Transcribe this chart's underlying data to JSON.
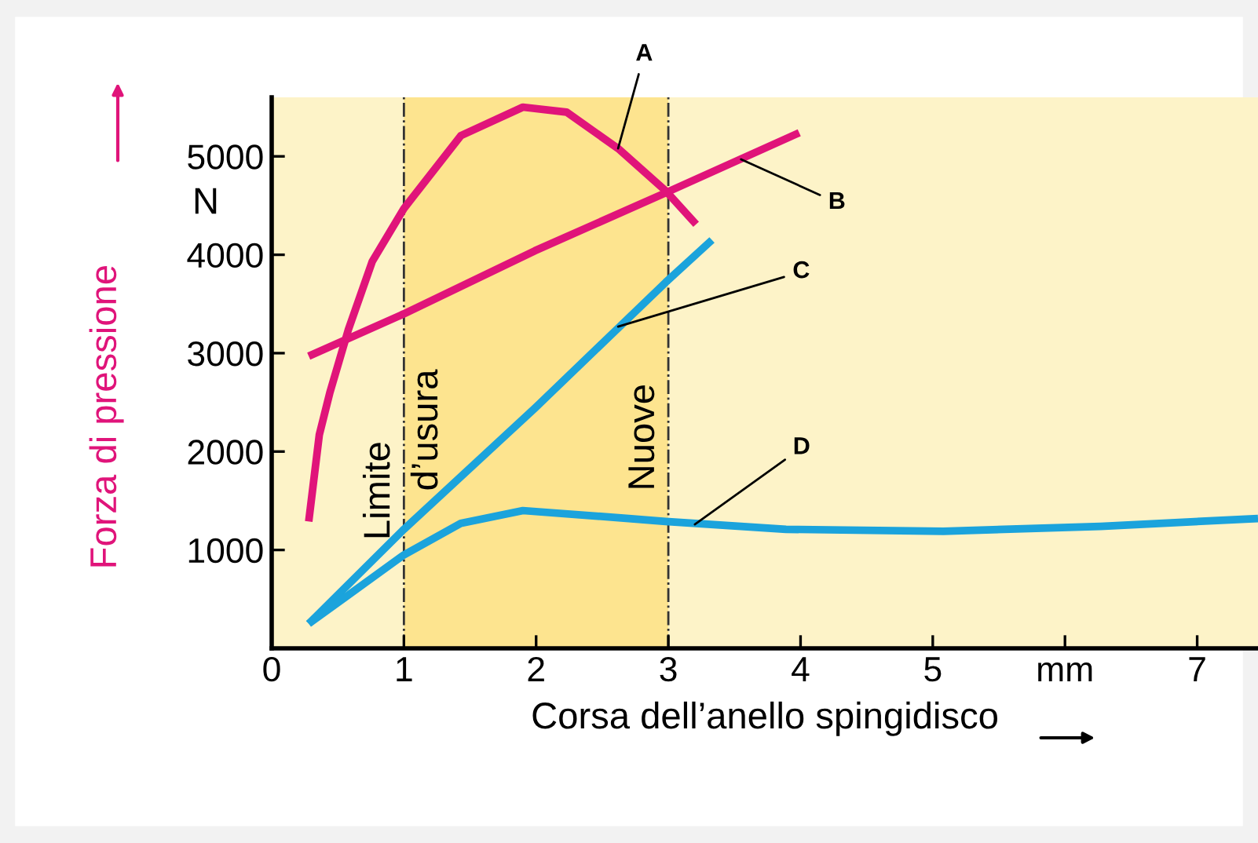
{
  "chart_data": {
    "type": "line",
    "xlabel": "Corsa dell’anello spingidisco",
    "ylabel": "Forza di pressione",
    "xlim": [
      0,
      7.46
    ],
    "ylim": [
      0,
      5600
    ],
    "xticks": [
      0,
      1,
      2,
      3,
      4,
      5,
      {
        "value": 6,
        "label": "mm"
      },
      7
    ],
    "yticks": [
      1000,
      2000,
      3000,
      4000,
      5000
    ],
    "grid": false,
    "legend": false,
    "marker": "none",
    "line_style": "solid",
    "series": [
      {
        "color": "#e0147a",
        "x": [
          0.28,
          0.36,
          0.44,
          0.58,
          0.76,
          1.0,
          1.43,
          1.9,
          2.23,
          2.62,
          2.98,
          3.21
        ],
        "values": [
          1290,
          2170,
          2600,
          3240,
          3930,
          4470,
          5210,
          5500,
          5450,
          5080,
          4650,
          4310
        ]
      },
      {
        "color": "#e0147a",
        "x": [
          0.28,
          1.0,
          1.99,
          2.98,
          3.99
        ],
        "values": [
          2970,
          3400,
          4040,
          4630,
          5240
        ]
      },
      {
        "color": "#1ba3dc",
        "x": [
          0.28,
          1.0,
          1.99,
          2.98,
          3.33
        ],
        "values": [
          250,
          1210,
          2440,
          3720,
          4150
        ]
      },
      {
        "color": "#1ba3dc",
        "x": [
          0.28,
          1.0,
          1.43,
          1.9,
          2.7,
          2.98,
          3.89,
          5.08,
          6.27,
          7.46
        ],
        "values": [
          250,
          950,
          1270,
          1400,
          1320,
          1290,
          1210,
          1190,
          1240,
          1320
        ]
      }
    ],
    "bands": [
      {
        "axis": "x",
        "from": 1,
        "to": 3,
        "color": "#fde48f"
      }
    ],
    "ref_lines": [
      {
        "axis": "x",
        "value": 1,
        "label": "Limite d’usura",
        "line_style": "dashdot"
      },
      {
        "axis": "x",
        "value": 3,
        "label": "Nuove",
        "line_style": "dashdot"
      }
    ],
    "annotations": [
      {
        "text": "A",
        "x": 2.62,
        "y": 5080
      },
      {
        "text": "B",
        "x": 3.55,
        "y": 4970
      },
      {
        "text": "C",
        "x": 2.62,
        "y": 3270
      },
      {
        "text": "D",
        "x": 3.2,
        "y": 1260
      },
      "N"
    ]
  }
}
